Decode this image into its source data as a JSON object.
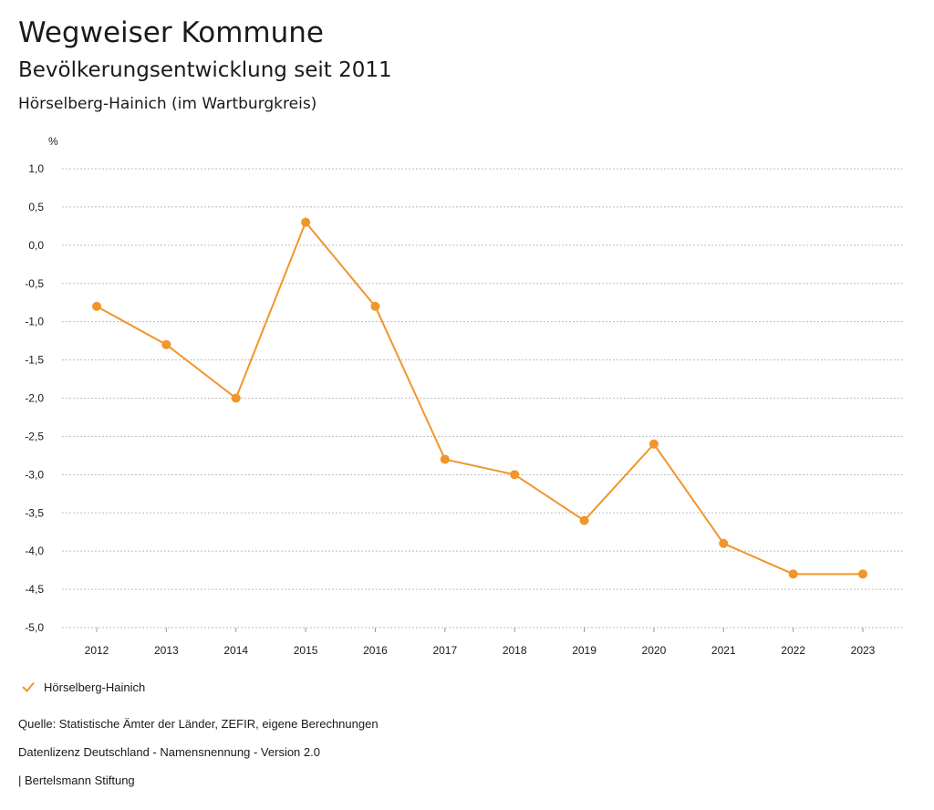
{
  "header": {
    "title": "Wegweiser Kommune",
    "subtitle": "Bevölkerungsentwicklung seit 2011",
    "region": "Hörselberg-Hainich (im Wartburgkreis)"
  },
  "chart_data": {
    "type": "line",
    "unit_label": "%",
    "x": [
      "2012",
      "2013",
      "2014",
      "2015",
      "2016",
      "2017",
      "2018",
      "2019",
      "2020",
      "2021",
      "2022",
      "2023"
    ],
    "series": [
      {
        "name": "Hörselberg-Hainich",
        "values": [
          -0.8,
          -1.3,
          -2.0,
          0.3,
          -0.8,
          -2.8,
          -3.0,
          -3.6,
          -2.6,
          -3.9,
          -4.3,
          -4.3
        ],
        "color": "#f0962a"
      }
    ],
    "ylim": [
      -5.0,
      1.0
    ],
    "yticks": [
      "1,0",
      "0,5",
      "0,0",
      "-0,5",
      "-1,0",
      "-1,5",
      "-2,0",
      "-2,5",
      "-3,0",
      "-3,5",
      "-4,0",
      "-4,5",
      "-5,0"
    ],
    "grid": true,
    "legend_position": "bottom-left"
  },
  "footer": {
    "source": "Quelle: Statistische Ämter der Länder, ZEFIR, eigene Berechnungen",
    "license": "Datenlizenz Deutschland - Namensnennung - Version 2.0",
    "publisher": "| Bertelsmann Stiftung"
  }
}
